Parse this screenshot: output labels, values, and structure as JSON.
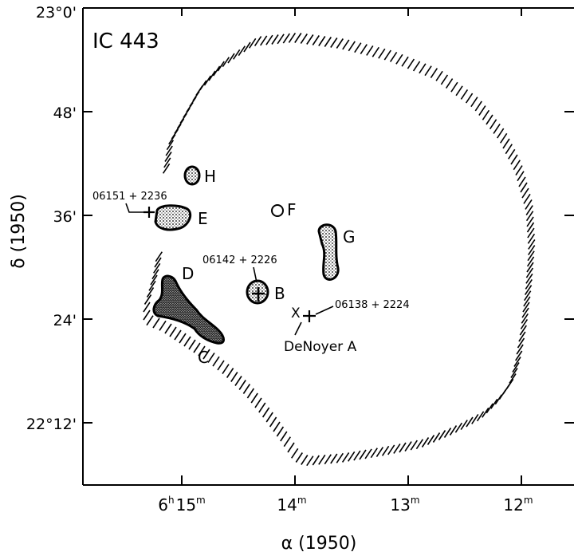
{
  "title": "IC 443",
  "axes": {
    "x_label": "α (1950)",
    "y_label": "δ (1950)",
    "x_ticks": [
      {
        "h": "6",
        "m": "15",
        "ra_min": 15
      },
      {
        "h": "",
        "m": "14",
        "ra_min": 14
      },
      {
        "h": "",
        "m": "13",
        "ra_min": 13
      },
      {
        "h": "",
        "m": "12",
        "ra_min": 12
      }
    ],
    "y_ticks": [
      {
        "label": "23°0'",
        "dec_arcmin": 1380
      },
      {
        "label": "48'",
        "dec_arcmin": 1368
      },
      {
        "label": "36'",
        "dec_arcmin": 1356
      },
      {
        "label": "24'",
        "dec_arcmin": 1344
      },
      {
        "label": "22°12'",
        "dec_arcmin": 1332
      }
    ]
  },
  "regions": [
    {
      "id": "H",
      "label": "H"
    },
    {
      "id": "E",
      "label": "E"
    },
    {
      "id": "F",
      "label": "F"
    },
    {
      "id": "G",
      "label": "G"
    },
    {
      "id": "B",
      "label": "B"
    },
    {
      "id": "D",
      "label": "D"
    },
    {
      "id": "C",
      "label": "C"
    }
  ],
  "sources": [
    {
      "id": "s1",
      "label": "06151 + 2236"
    },
    {
      "id": "s2",
      "label": "06142 + 2226"
    },
    {
      "id": "s3",
      "label": "06138 + 2224"
    }
  ],
  "annotations": {
    "denoyer_marker": "X",
    "denoyer_label": "DeNoyer A"
  },
  "colors": {
    "ink": "#000000",
    "background": "#ffffff"
  }
}
